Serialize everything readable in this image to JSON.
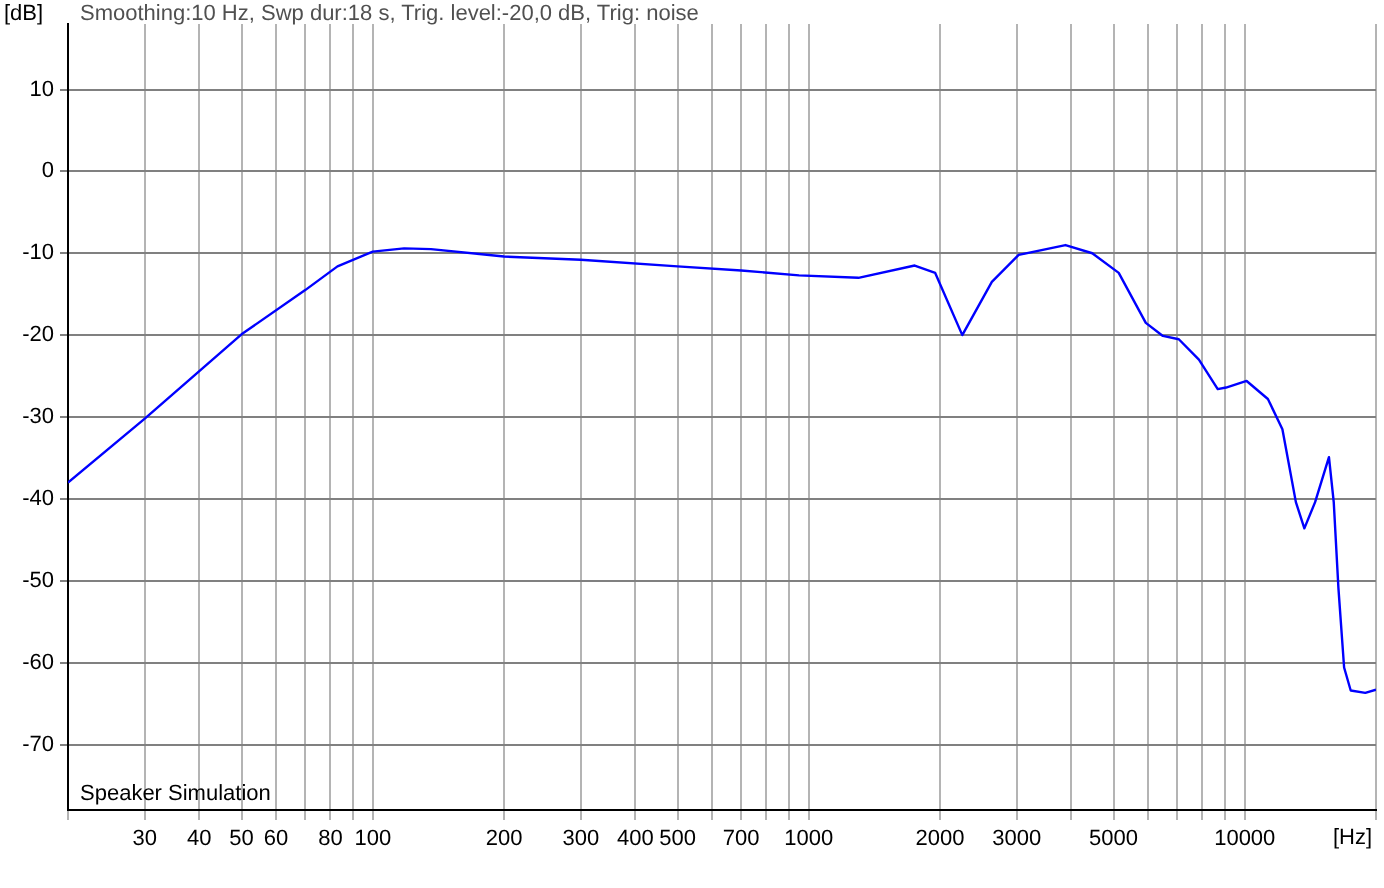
{
  "chart_data": {
    "type": "line",
    "xlabel": "[Hz]",
    "ylabel": "[dB]",
    "annotations": [
      "Smoothing:10 Hz, Swp dur:18 s, Trig. level:-20,0 dB, Trig: noise",
      "Speaker Simulation"
    ],
    "x": [
      20,
      30,
      50,
      70,
      83,
      100,
      118,
      136,
      200,
      300,
      500,
      700,
      950,
      1300,
      1750,
      1950,
      2250,
      2630,
      3030,
      3880,
      4470,
      5140,
      5930,
      6490,
      7060,
      7850,
      8670,
      9060,
      10100,
      11300,
      12200,
      13100,
      13700,
      14500,
      15600,
      16000,
      16400,
      16900,
      17500,
      18900,
      20000
    ],
    "series": [
      {
        "color": "#0000ff",
        "values": [
          -38,
          -30.2,
          -19.9,
          -14.5,
          -11.6,
          -9.8,
          -9.4,
          -9.5,
          -10.4,
          -10.8,
          -11.6,
          -12.1,
          -12.7,
          -13,
          -11.5,
          -12.4,
          -20,
          -13.5,
          -10.2,
          -9,
          -10,
          -12.4,
          -18.5,
          -20.1,
          -20.5,
          -23,
          -26.6,
          -26.4,
          -25.6,
          -27.8,
          -31.5,
          -40.4,
          -43.6,
          -40.4,
          -34.9,
          -40.4,
          -50.9,
          -60.6,
          -63.4,
          -63.7,
          -63.3
        ]
      }
    ],
    "log": "x",
    "xlim": [
      20,
      20000
    ],
    "ylim": [
      -78,
      18
    ],
    "xticks": [
      {
        "value": 20,
        "label": null
      },
      30,
      40,
      50,
      60,
      {
        "value": 70,
        "label": null
      },
      80,
      {
        "value": 90,
        "label": null
      },
      100,
      200,
      300,
      400,
      500,
      {
        "value": 600,
        "label": null
      },
      700,
      {
        "value": 800,
        "label": null
      },
      {
        "value": 900,
        "label": null
      },
      1000,
      2000,
      3000,
      {
        "value": 4000,
        "label": null
      },
      5000,
      {
        "value": 6000,
        "label": null
      },
      {
        "value": 7000,
        "label": null
      },
      {
        "value": 8000,
        "label": null
      },
      {
        "value": 9000,
        "label": null
      },
      10000,
      {
        "value": 20000,
        "label": null
      }
    ],
    "yticks": [
      10,
      0,
      -10,
      -20,
      -30,
      -40,
      -50,
      -60,
      -70
    ],
    "grid": true,
    "legend": false,
    "marker": "none",
    "line_style": "solid"
  }
}
